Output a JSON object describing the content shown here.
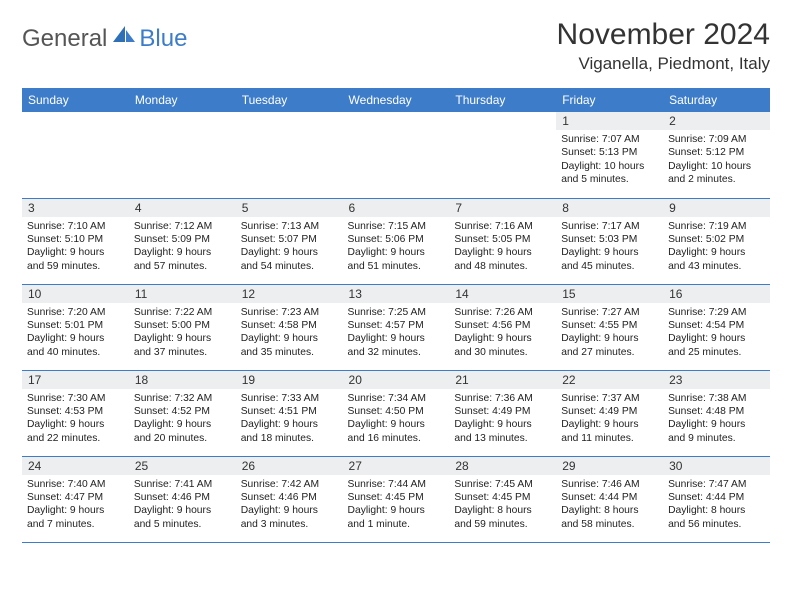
{
  "logo": {
    "text1": "General",
    "text2": "Blue",
    "color1": "#555555",
    "color2": "#3d7cc9"
  },
  "title": "November 2024",
  "location": "Viganella, Piedmont, Italy",
  "colors": {
    "header_bg": "#3d7cc9",
    "header_fg": "#ffffff",
    "daynum_bg": "#eceeef",
    "border": "#3d7cc9",
    "text": "#222222"
  },
  "dow": [
    "Sunday",
    "Monday",
    "Tuesday",
    "Wednesday",
    "Thursday",
    "Friday",
    "Saturday"
  ],
  "weeks": [
    [
      null,
      null,
      null,
      null,
      null,
      {
        "n": "1",
        "sunrise": "Sunrise: 7:07 AM",
        "sunset": "Sunset: 5:13 PM",
        "day": "Daylight: 10 hours and 5 minutes."
      },
      {
        "n": "2",
        "sunrise": "Sunrise: 7:09 AM",
        "sunset": "Sunset: 5:12 PM",
        "day": "Daylight: 10 hours and 2 minutes."
      }
    ],
    [
      {
        "n": "3",
        "sunrise": "Sunrise: 7:10 AM",
        "sunset": "Sunset: 5:10 PM",
        "day": "Daylight: 9 hours and 59 minutes."
      },
      {
        "n": "4",
        "sunrise": "Sunrise: 7:12 AM",
        "sunset": "Sunset: 5:09 PM",
        "day": "Daylight: 9 hours and 57 minutes."
      },
      {
        "n": "5",
        "sunrise": "Sunrise: 7:13 AM",
        "sunset": "Sunset: 5:07 PM",
        "day": "Daylight: 9 hours and 54 minutes."
      },
      {
        "n": "6",
        "sunrise": "Sunrise: 7:15 AM",
        "sunset": "Sunset: 5:06 PM",
        "day": "Daylight: 9 hours and 51 minutes."
      },
      {
        "n": "7",
        "sunrise": "Sunrise: 7:16 AM",
        "sunset": "Sunset: 5:05 PM",
        "day": "Daylight: 9 hours and 48 minutes."
      },
      {
        "n": "8",
        "sunrise": "Sunrise: 7:17 AM",
        "sunset": "Sunset: 5:03 PM",
        "day": "Daylight: 9 hours and 45 minutes."
      },
      {
        "n": "9",
        "sunrise": "Sunrise: 7:19 AM",
        "sunset": "Sunset: 5:02 PM",
        "day": "Daylight: 9 hours and 43 minutes."
      }
    ],
    [
      {
        "n": "10",
        "sunrise": "Sunrise: 7:20 AM",
        "sunset": "Sunset: 5:01 PM",
        "day": "Daylight: 9 hours and 40 minutes."
      },
      {
        "n": "11",
        "sunrise": "Sunrise: 7:22 AM",
        "sunset": "Sunset: 5:00 PM",
        "day": "Daylight: 9 hours and 37 minutes."
      },
      {
        "n": "12",
        "sunrise": "Sunrise: 7:23 AM",
        "sunset": "Sunset: 4:58 PM",
        "day": "Daylight: 9 hours and 35 minutes."
      },
      {
        "n": "13",
        "sunrise": "Sunrise: 7:25 AM",
        "sunset": "Sunset: 4:57 PM",
        "day": "Daylight: 9 hours and 32 minutes."
      },
      {
        "n": "14",
        "sunrise": "Sunrise: 7:26 AM",
        "sunset": "Sunset: 4:56 PM",
        "day": "Daylight: 9 hours and 30 minutes."
      },
      {
        "n": "15",
        "sunrise": "Sunrise: 7:27 AM",
        "sunset": "Sunset: 4:55 PM",
        "day": "Daylight: 9 hours and 27 minutes."
      },
      {
        "n": "16",
        "sunrise": "Sunrise: 7:29 AM",
        "sunset": "Sunset: 4:54 PM",
        "day": "Daylight: 9 hours and 25 minutes."
      }
    ],
    [
      {
        "n": "17",
        "sunrise": "Sunrise: 7:30 AM",
        "sunset": "Sunset: 4:53 PM",
        "day": "Daylight: 9 hours and 22 minutes."
      },
      {
        "n": "18",
        "sunrise": "Sunrise: 7:32 AM",
        "sunset": "Sunset: 4:52 PM",
        "day": "Daylight: 9 hours and 20 minutes."
      },
      {
        "n": "19",
        "sunrise": "Sunrise: 7:33 AM",
        "sunset": "Sunset: 4:51 PM",
        "day": "Daylight: 9 hours and 18 minutes."
      },
      {
        "n": "20",
        "sunrise": "Sunrise: 7:34 AM",
        "sunset": "Sunset: 4:50 PM",
        "day": "Daylight: 9 hours and 16 minutes."
      },
      {
        "n": "21",
        "sunrise": "Sunrise: 7:36 AM",
        "sunset": "Sunset: 4:49 PM",
        "day": "Daylight: 9 hours and 13 minutes."
      },
      {
        "n": "22",
        "sunrise": "Sunrise: 7:37 AM",
        "sunset": "Sunset: 4:49 PM",
        "day": "Daylight: 9 hours and 11 minutes."
      },
      {
        "n": "23",
        "sunrise": "Sunrise: 7:38 AM",
        "sunset": "Sunset: 4:48 PM",
        "day": "Daylight: 9 hours and 9 minutes."
      }
    ],
    [
      {
        "n": "24",
        "sunrise": "Sunrise: 7:40 AM",
        "sunset": "Sunset: 4:47 PM",
        "day": "Daylight: 9 hours and 7 minutes."
      },
      {
        "n": "25",
        "sunrise": "Sunrise: 7:41 AM",
        "sunset": "Sunset: 4:46 PM",
        "day": "Daylight: 9 hours and 5 minutes."
      },
      {
        "n": "26",
        "sunrise": "Sunrise: 7:42 AM",
        "sunset": "Sunset: 4:46 PM",
        "day": "Daylight: 9 hours and 3 minutes."
      },
      {
        "n": "27",
        "sunrise": "Sunrise: 7:44 AM",
        "sunset": "Sunset: 4:45 PM",
        "day": "Daylight: 9 hours and 1 minute."
      },
      {
        "n": "28",
        "sunrise": "Sunrise: 7:45 AM",
        "sunset": "Sunset: 4:45 PM",
        "day": "Daylight: 8 hours and 59 minutes."
      },
      {
        "n": "29",
        "sunrise": "Sunrise: 7:46 AM",
        "sunset": "Sunset: 4:44 PM",
        "day": "Daylight: 8 hours and 58 minutes."
      },
      {
        "n": "30",
        "sunrise": "Sunrise: 7:47 AM",
        "sunset": "Sunset: 4:44 PM",
        "day": "Daylight: 8 hours and 56 minutes."
      }
    ]
  ]
}
